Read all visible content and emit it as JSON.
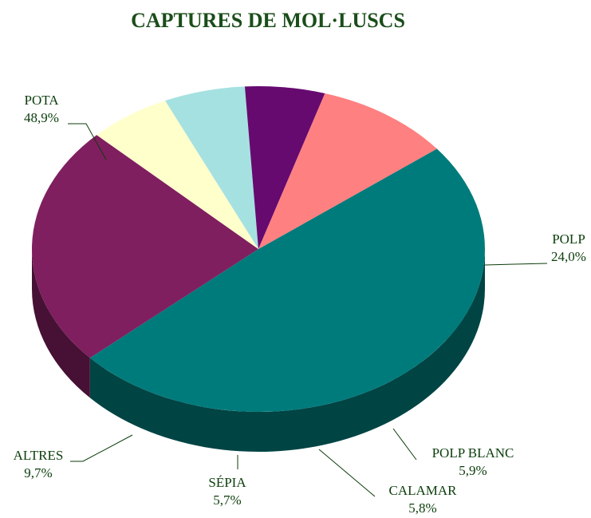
{
  "chart_data": {
    "type": "pie",
    "title": "CAPTURES DE MOL·LUSCS",
    "categories": [
      "POTA",
      "POLP",
      "POLP BLANC",
      "CALAMAR",
      "SÉPIA",
      "ALTRES"
    ],
    "values": [
      48.9,
      24.0,
      5.9,
      5.8,
      5.7,
      9.7
    ],
    "value_labels": [
      "48,9%",
      "24,0%",
      "5,9%",
      "5,8%",
      "5,7%",
      "9,7%"
    ],
    "colors": [
      "#007b7b",
      "#7f1f5f",
      "#ffffcc",
      "#a6e1e1",
      "#660a70",
      "#ff8080"
    ]
  }
}
